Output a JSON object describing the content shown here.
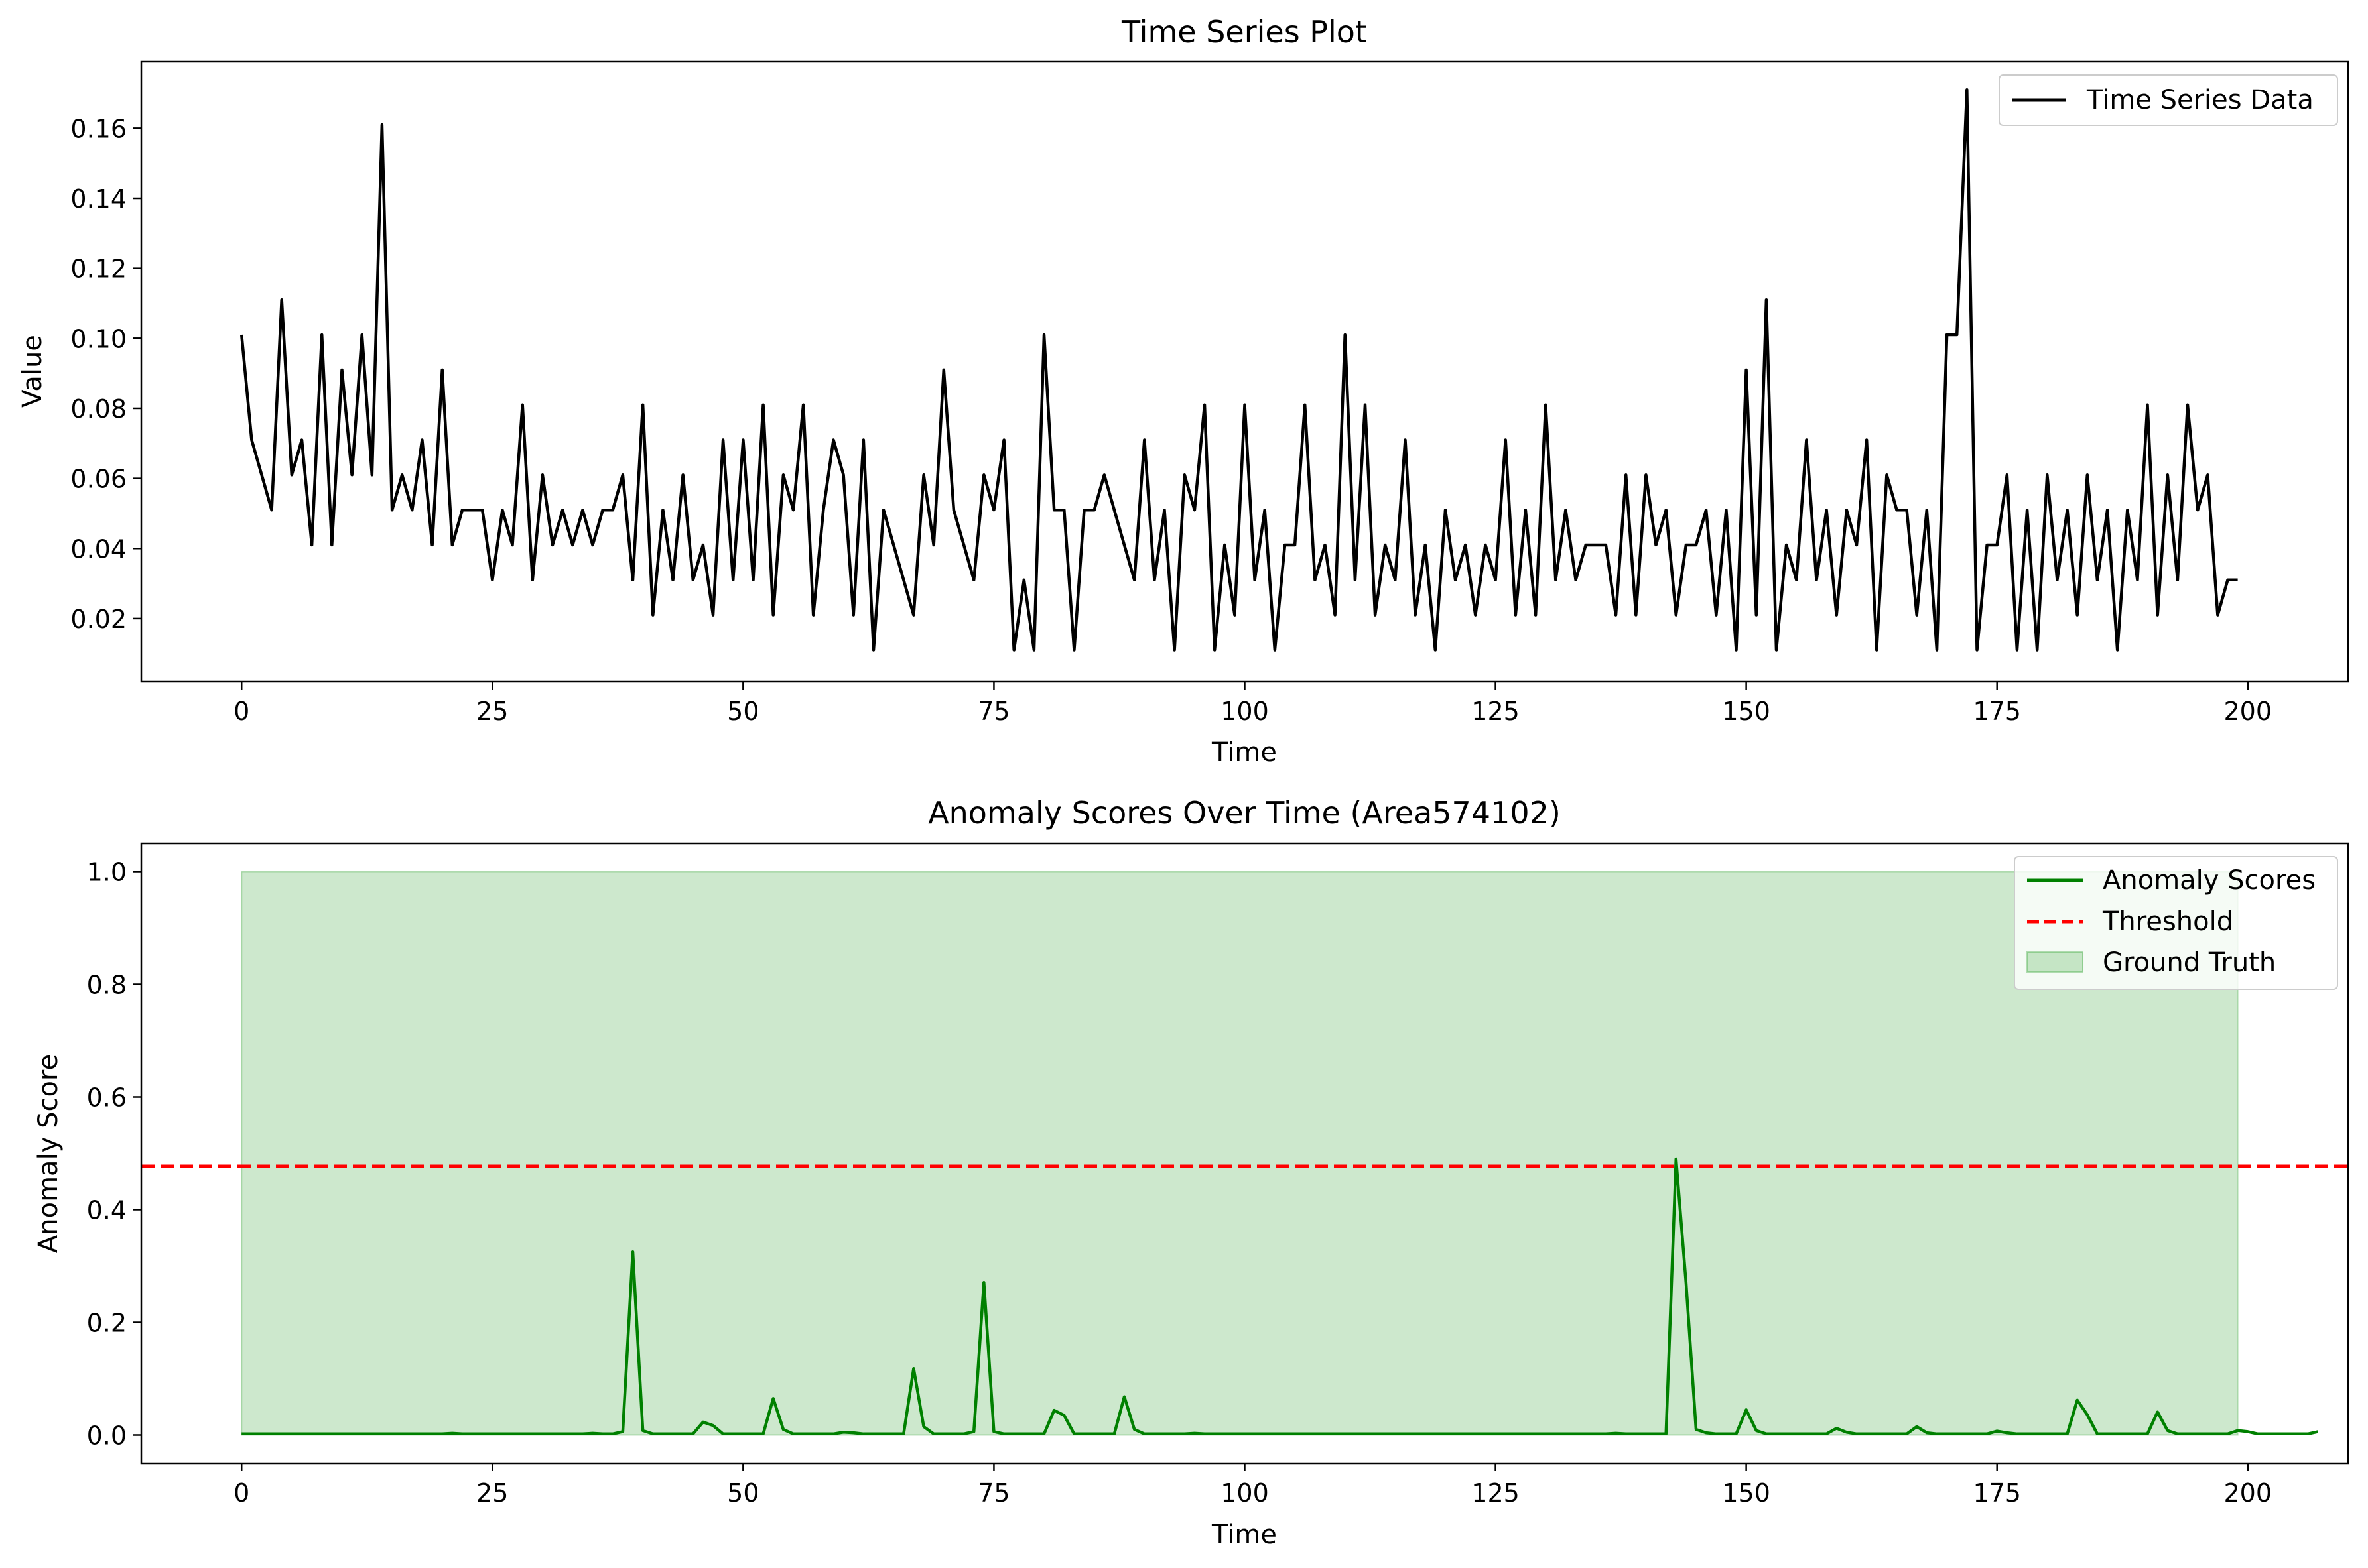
{
  "chart_data": [
    {
      "type": "line",
      "title": "Time Series Plot",
      "xlabel": "Time",
      "ylabel": "Value",
      "xlim": [
        -10,
        210
      ],
      "ylim": [
        0.002,
        0.179
      ],
      "x_ticks": [
        0,
        25,
        50,
        75,
        100,
        125,
        150,
        175,
        200
      ],
      "x_tick_labels": [
        "0",
        "25",
        "50",
        "75",
        "100",
        "125",
        "150",
        "175",
        "200"
      ],
      "y_ticks": [
        0.02,
        0.04,
        0.06,
        0.08,
        0.1,
        0.12,
        0.14,
        0.16
      ],
      "y_tick_labels": [
        "0.02",
        "0.04",
        "0.06",
        "0.08",
        "0.10",
        "0.12",
        "0.14",
        "0.16"
      ],
      "legend_position": "upper right",
      "series": [
        {
          "name": "Time Series Data",
          "color": "#000000",
          "x_start": 0,
          "x_step": 1,
          "values": [
            0.101,
            0.071,
            0.061,
            0.051,
            0.111,
            0.061,
            0.071,
            0.041,
            0.101,
            0.041,
            0.091,
            0.061,
            0.101,
            0.061,
            0.161,
            0.051,
            0.061,
            0.051,
            0.071,
            0.041,
            0.091,
            0.041,
            0.051,
            0.051,
            0.051,
            0.031,
            0.051,
            0.041,
            0.081,
            0.031,
            0.061,
            0.041,
            0.051,
            0.041,
            0.051,
            0.041,
            0.051,
            0.051,
            0.061,
            0.031,
            0.081,
            0.021,
            0.051,
            0.031,
            0.061,
            0.031,
            0.041,
            0.021,
            0.071,
            0.031,
            0.071,
            0.031,
            0.081,
            0.021,
            0.061,
            0.051,
            0.081,
            0.021,
            0.051,
            0.071,
            0.061,
            0.021,
            0.071,
            0.011,
            0.051,
            0.041,
            0.031,
            0.021,
            0.061,
            0.041,
            0.091,
            0.051,
            0.041,
            0.031,
            0.061,
            0.051,
            0.071,
            0.011,
            0.031,
            0.011,
            0.101,
            0.051,
            0.051,
            0.011,
            0.051,
            0.051,
            0.061,
            0.051,
            0.041,
            0.031,
            0.071,
            0.031,
            0.051,
            0.011,
            0.061,
            0.051,
            0.081,
            0.011,
            0.041,
            0.021,
            0.081,
            0.031,
            0.051,
            0.011,
            0.041,
            0.041,
            0.081,
            0.031,
            0.041,
            0.021,
            0.101,
            0.031,
            0.081,
            0.021,
            0.041,
            0.031,
            0.071,
            0.021,
            0.041,
            0.011,
            0.051,
            0.031,
            0.041,
            0.021,
            0.041,
            0.031,
            0.071,
            0.021,
            0.051,
            0.021,
            0.081,
            0.031,
            0.051,
            0.031,
            0.041,
            0.041,
            0.041,
            0.021,
            0.061,
            0.021,
            0.061,
            0.041,
            0.051,
            0.021,
            0.041,
            0.041,
            0.051,
            0.021,
            0.051,
            0.011,
            0.091,
            0.021,
            0.111,
            0.011,
            0.041,
            0.031,
            0.071,
            0.031,
            0.051,
            0.021,
            0.051,
            0.041,
            0.071,
            0.011,
            0.061,
            0.051,
            0.051,
            0.021,
            0.051,
            0.011,
            0.101,
            0.101,
            0.171,
            0.011,
            0.041,
            0.041,
            0.061,
            0.011,
            0.051,
            0.011,
            0.061,
            0.031,
            0.051,
            0.021,
            0.061,
            0.031,
            0.051,
            0.011,
            0.051,
            0.031,
            0.081,
            0.021,
            0.061,
            0.031,
            0.081,
            0.051,
            0.061,
            0.021,
            0.031,
            0.031
          ]
        }
      ]
    },
    {
      "type": "line",
      "title": "Anomaly Scores Over Time (Area574102)",
      "xlabel": "Time",
      "ylabel": "Anomaly Score",
      "xlim": [
        -10,
        210
      ],
      "ylim": [
        -0.05,
        1.05
      ],
      "x_ticks": [
        0,
        25,
        50,
        75,
        100,
        125,
        150,
        175,
        200
      ],
      "x_tick_labels": [
        "0",
        "25",
        "50",
        "75",
        "100",
        "125",
        "150",
        "175",
        "200"
      ],
      "y_ticks": [
        0.0,
        0.2,
        0.4,
        0.6,
        0.8,
        1.0
      ],
      "y_tick_labels": [
        "0.0",
        "0.2",
        "0.4",
        "0.6",
        "0.8",
        "1.0"
      ],
      "legend_position": "upper right",
      "series": [
        {
          "name": "Anomaly Scores",
          "color": "#008000",
          "x_start": 0,
          "x_step": 1,
          "values": [
            0.002,
            0.002,
            0.002,
            0.002,
            0.002,
            0.002,
            0.002,
            0.002,
            0.002,
            0.002,
            0.002,
            0.002,
            0.002,
            0.002,
            0.002,
            0.002,
            0.002,
            0.002,
            0.002,
            0.002,
            0.002,
            0.003,
            0.002,
            0.002,
            0.002,
            0.002,
            0.002,
            0.002,
            0.002,
            0.002,
            0.002,
            0.002,
            0.002,
            0.002,
            0.002,
            0.003,
            0.002,
            0.002,
            0.006,
            0.325,
            0.008,
            0.002,
            0.002,
            0.002,
            0.002,
            0.002,
            0.023,
            0.017,
            0.002,
            0.002,
            0.002,
            0.002,
            0.002,
            0.065,
            0.01,
            0.002,
            0.002,
            0.002,
            0.002,
            0.002,
            0.005,
            0.004,
            0.002,
            0.002,
            0.002,
            0.002,
            0.002,
            0.118,
            0.015,
            0.002,
            0.002,
            0.002,
            0.002,
            0.006,
            0.271,
            0.006,
            0.002,
            0.002,
            0.002,
            0.002,
            0.002,
            0.044,
            0.035,
            0.002,
            0.002,
            0.002,
            0.002,
            0.002,
            0.068,
            0.01,
            0.002,
            0.002,
            0.002,
            0.002,
            0.002,
            0.003,
            0.002,
            0.002,
            0.002,
            0.002,
            0.002,
            0.002,
            0.002,
            0.002,
            0.002,
            0.002,
            0.002,
            0.002,
            0.002,
            0.002,
            0.002,
            0.002,
            0.002,
            0.002,
            0.002,
            0.002,
            0.002,
            0.002,
            0.002,
            0.002,
            0.002,
            0.002,
            0.002,
            0.002,
            0.002,
            0.002,
            0.002,
            0.002,
            0.002,
            0.002,
            0.002,
            0.002,
            0.002,
            0.002,
            0.002,
            0.002,
            0.002,
            0.003,
            0.002,
            0.002,
            0.002,
            0.002,
            0.002,
            0.49,
            0.27,
            0.01,
            0.004,
            0.002,
            0.002,
            0.002,
            0.045,
            0.008,
            0.002,
            0.002,
            0.002,
            0.002,
            0.002,
            0.002,
            0.002,
            0.012,
            0.005,
            0.002,
            0.002,
            0.002,
            0.002,
            0.002,
            0.002,
            0.015,
            0.004,
            0.002,
            0.002,
            0.002,
            0.002,
            0.002,
            0.002,
            0.007,
            0.004,
            0.002,
            0.002,
            0.002,
            0.002,
            0.002,
            0.002,
            0.062,
            0.036,
            0.002,
            0.002,
            0.002,
            0.002,
            0.002,
            0.002,
            0.041,
            0.008,
            0.002,
            0.002,
            0.002,
            0.002,
            0.002,
            0.002,
            0.008,
            0.006,
            0.002,
            0.002,
            0.002,
            0.002,
            0.002,
            0.002,
            0.006
          ]
        },
        {
          "name": "Threshold",
          "color": "#ff0000",
          "style": "dashed",
          "value": 0.477
        },
        {
          "name": "Ground Truth",
          "color": "#2ca02c",
          "style": "filled-area",
          "x_range": [
            0,
            199
          ],
          "value": 1.0
        }
      ]
    }
  ]
}
